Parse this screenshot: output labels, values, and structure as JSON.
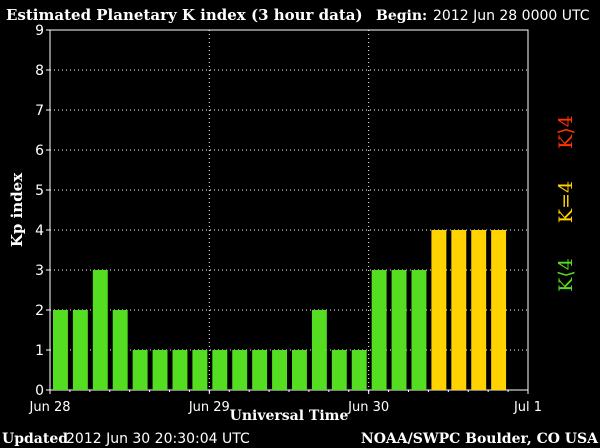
{
  "header": {
    "title": "Estimated Planetary K index (3 hour data)",
    "begin_label": "Begin:",
    "begin_value": "2012 Jun 28 0000 UTC"
  },
  "footer": {
    "updated_label": "Updated",
    "updated_value": "2012 Jun 30 20:30:04 UTC",
    "credit": "NOAA/SWPC Boulder, CO USA"
  },
  "legend": {
    "low": {
      "text": "K⟨4",
      "color": "#55dd22"
    },
    "mid": {
      "text": "K=4",
      "color": "#ffd200"
    },
    "high": {
      "text": "K⟩4",
      "color": "#ff3300"
    }
  },
  "chart_data": {
    "type": "bar",
    "xlabel": "Universal Time",
    "ylabel": "Kp index",
    "ylim": [
      0,
      9
    ],
    "yticks": [
      0,
      1,
      2,
      3,
      4,
      5,
      6,
      7,
      8,
      9
    ],
    "x_range_days": [
      0,
      3
    ],
    "xtick_labels": [
      "Jun 28",
      "Jun 29",
      "Jun 30",
      "Jul 1"
    ],
    "grid": true,
    "bin_hours": 3,
    "values": [
      2,
      2,
      3,
      2,
      1,
      1,
      1,
      1,
      1,
      1,
      1,
      1,
      1,
      2,
      1,
      1,
      3,
      3,
      3,
      4,
      4,
      4,
      4
    ],
    "colors": {
      "below_4": "#55dd22",
      "equal_4": "#ffd200",
      "above_4": "#ff3300"
    }
  }
}
